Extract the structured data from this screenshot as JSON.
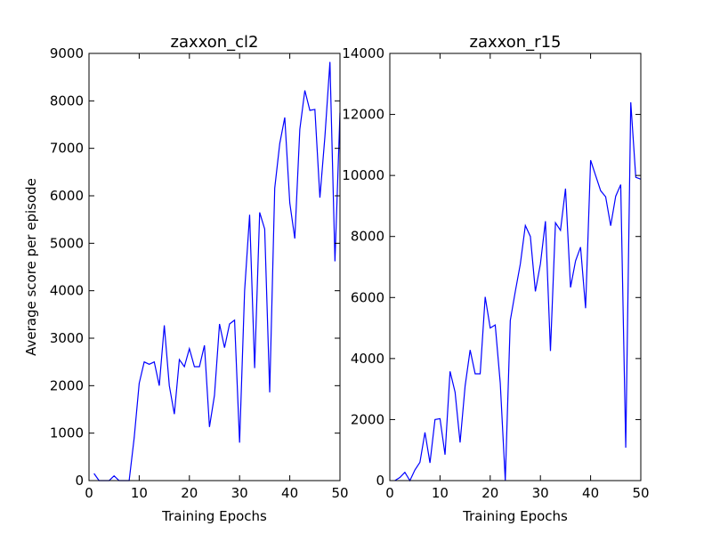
{
  "chart_data": [
    {
      "type": "line",
      "title": "zaxxon_cl2",
      "xlabel": "Training Epochs",
      "ylabel": "Average score per episode",
      "xlim": [
        0,
        50
      ],
      "ylim": [
        0,
        9000
      ],
      "xticks": [
        0,
        10,
        20,
        30,
        40,
        50
      ],
      "yticks": [
        0,
        1000,
        2000,
        3000,
        4000,
        5000,
        6000,
        7000,
        8000,
        9000
      ],
      "grid": false,
      "line_color": "#0000ff",
      "series": [
        {
          "x": [
            1,
            2,
            3,
            4,
            5,
            6,
            7,
            8,
            9,
            10,
            11,
            12,
            13,
            14,
            15,
            16,
            17,
            18,
            19,
            20,
            21,
            22,
            23,
            24,
            25,
            26,
            27,
            28,
            29,
            30,
            31,
            32,
            33,
            34,
            35,
            36,
            37,
            38,
            39,
            40,
            41,
            42,
            43,
            44,
            45,
            46,
            47,
            48,
            49,
            50
          ],
          "values": [
            150,
            0,
            0,
            0,
            100,
            0,
            0,
            0,
            900,
            2050,
            2500,
            2450,
            2500,
            2000,
            3270,
            2000,
            1400,
            2550,
            2400,
            2780,
            2400,
            2400,
            2850,
            1130,
            1800,
            3300,
            2800,
            3300,
            3380,
            800,
            4000,
            5600,
            2370,
            5650,
            5300,
            1860,
            6160,
            7100,
            7650,
            5850,
            5100,
            7400,
            8220,
            7800,
            7820,
            5960,
            7250,
            8820,
            4620,
            7750
          ]
        }
      ]
    },
    {
      "type": "line",
      "title": "zaxxon_r15",
      "xlabel": "Training Epochs",
      "ylabel": "",
      "xlim": [
        0,
        50
      ],
      "ylim": [
        0,
        14000
      ],
      "xticks": [
        0,
        10,
        20,
        30,
        40,
        50
      ],
      "yticks": [
        0,
        2000,
        4000,
        6000,
        8000,
        10000,
        12000,
        14000
      ],
      "grid": false,
      "line_color": "#0000ff",
      "series": [
        {
          "x": [
            1,
            2,
            3,
            4,
            5,
            6,
            7,
            8,
            9,
            10,
            11,
            12,
            13,
            14,
            15,
            16,
            17,
            18,
            19,
            20,
            21,
            22,
            23,
            24,
            25,
            26,
            27,
            28,
            29,
            30,
            31,
            32,
            33,
            34,
            35,
            36,
            37,
            38,
            39,
            40,
            41,
            42,
            43,
            44,
            45,
            46,
            47,
            48,
            49,
            50
          ],
          "values": [
            0,
            100,
            270,
            0,
            350,
            600,
            1580,
            580,
            2000,
            2030,
            850,
            3580,
            2900,
            1250,
            3100,
            4280,
            3500,
            3500,
            6020,
            5000,
            5100,
            3200,
            0,
            5250,
            6200,
            7100,
            8360,
            8000,
            6200,
            7100,
            8500,
            4250,
            8450,
            8200,
            9570,
            6330,
            7200,
            7650,
            5650,
            10500,
            10000,
            9500,
            9300,
            8350,
            9320,
            9700,
            1080,
            12400,
            9940,
            9880
          ]
        }
      ]
    }
  ]
}
